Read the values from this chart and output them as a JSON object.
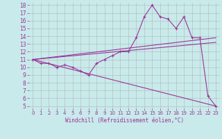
{
  "xlabel": "Windchill (Refroidissement éolien,°C)",
  "bg_color": "#c8eaea",
  "line_color": "#993399",
  "grid_color": "#aaaaaa",
  "xlim": [
    -0.5,
    23.5
  ],
  "ylim": [
    4.7,
    18.3
  ],
  "xticks": [
    0,
    1,
    2,
    3,
    4,
    5,
    6,
    7,
    8,
    9,
    10,
    11,
    12,
    13,
    14,
    15,
    16,
    17,
    18,
    19,
    20,
    21,
    22,
    23
  ],
  "yticks": [
    5,
    6,
    7,
    8,
    9,
    10,
    11,
    12,
    13,
    14,
    15,
    16,
    17,
    18
  ],
  "series1_x": [
    0,
    1,
    2,
    3,
    4,
    5,
    6,
    7,
    8,
    9,
    10,
    11,
    12,
    13,
    14,
    15,
    16,
    17,
    18,
    19,
    20,
    21,
    22,
    23
  ],
  "series1_y": [
    11.0,
    10.5,
    10.5,
    10.0,
    10.3,
    10.0,
    9.5,
    9.0,
    10.5,
    11.0,
    11.5,
    12.0,
    12.0,
    13.8,
    16.5,
    18.0,
    16.5,
    16.2,
    15.0,
    16.5,
    13.8,
    13.8,
    6.3,
    5.0
  ],
  "series2_x": [
    0,
    23
  ],
  "series2_y": [
    11.0,
    13.8
  ],
  "series3_x": [
    0,
    23
  ],
  "series3_y": [
    11.0,
    13.2
  ],
  "series4_x": [
    0,
    23
  ],
  "series4_y": [
    11.0,
    5.0
  ],
  "xlabel_fontsize": 5.5,
  "tick_fontsize_x": 5.0,
  "tick_fontsize_y": 5.5
}
